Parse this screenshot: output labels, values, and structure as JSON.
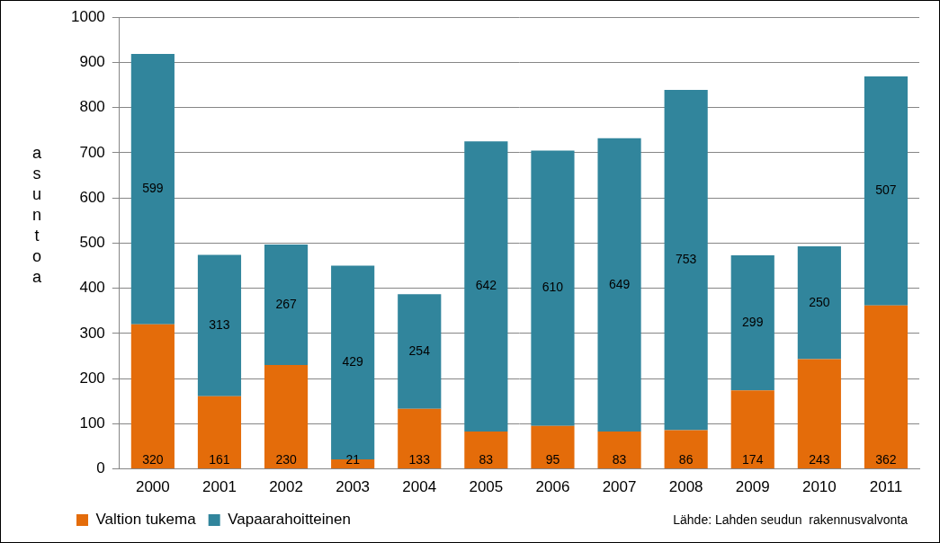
{
  "chart_data": {
    "type": "bar",
    "stacked": true,
    "categories": [
      "2000",
      "2001",
      "2002",
      "2003",
      "2004",
      "2005",
      "2006",
      "2007",
      "2008",
      "2009",
      "2010",
      "2011"
    ],
    "series": [
      {
        "name": "Valtion tukema",
        "color": "#e46c0a",
        "values": [
          320,
          161,
          230,
          21,
          133,
          83,
          95,
          83,
          86,
          174,
          243,
          362
        ]
      },
      {
        "name": "Vapaarahoitteinen",
        "color": "#31859c",
        "values": [
          599,
          313,
          267,
          429,
          254,
          642,
          610,
          649,
          753,
          299,
          250,
          507
        ]
      }
    ],
    "ylabel": "asuntoa",
    "ylim": [
      0,
      1000
    ],
    "yticks": [
      0,
      100,
      200,
      300,
      400,
      500,
      600,
      700,
      800,
      900,
      1000
    ],
    "grid": true,
    "legend": "bottom",
    "data_labels": true,
    "source": "Lähde: Lahden seudun  rakennusvalvonta"
  }
}
